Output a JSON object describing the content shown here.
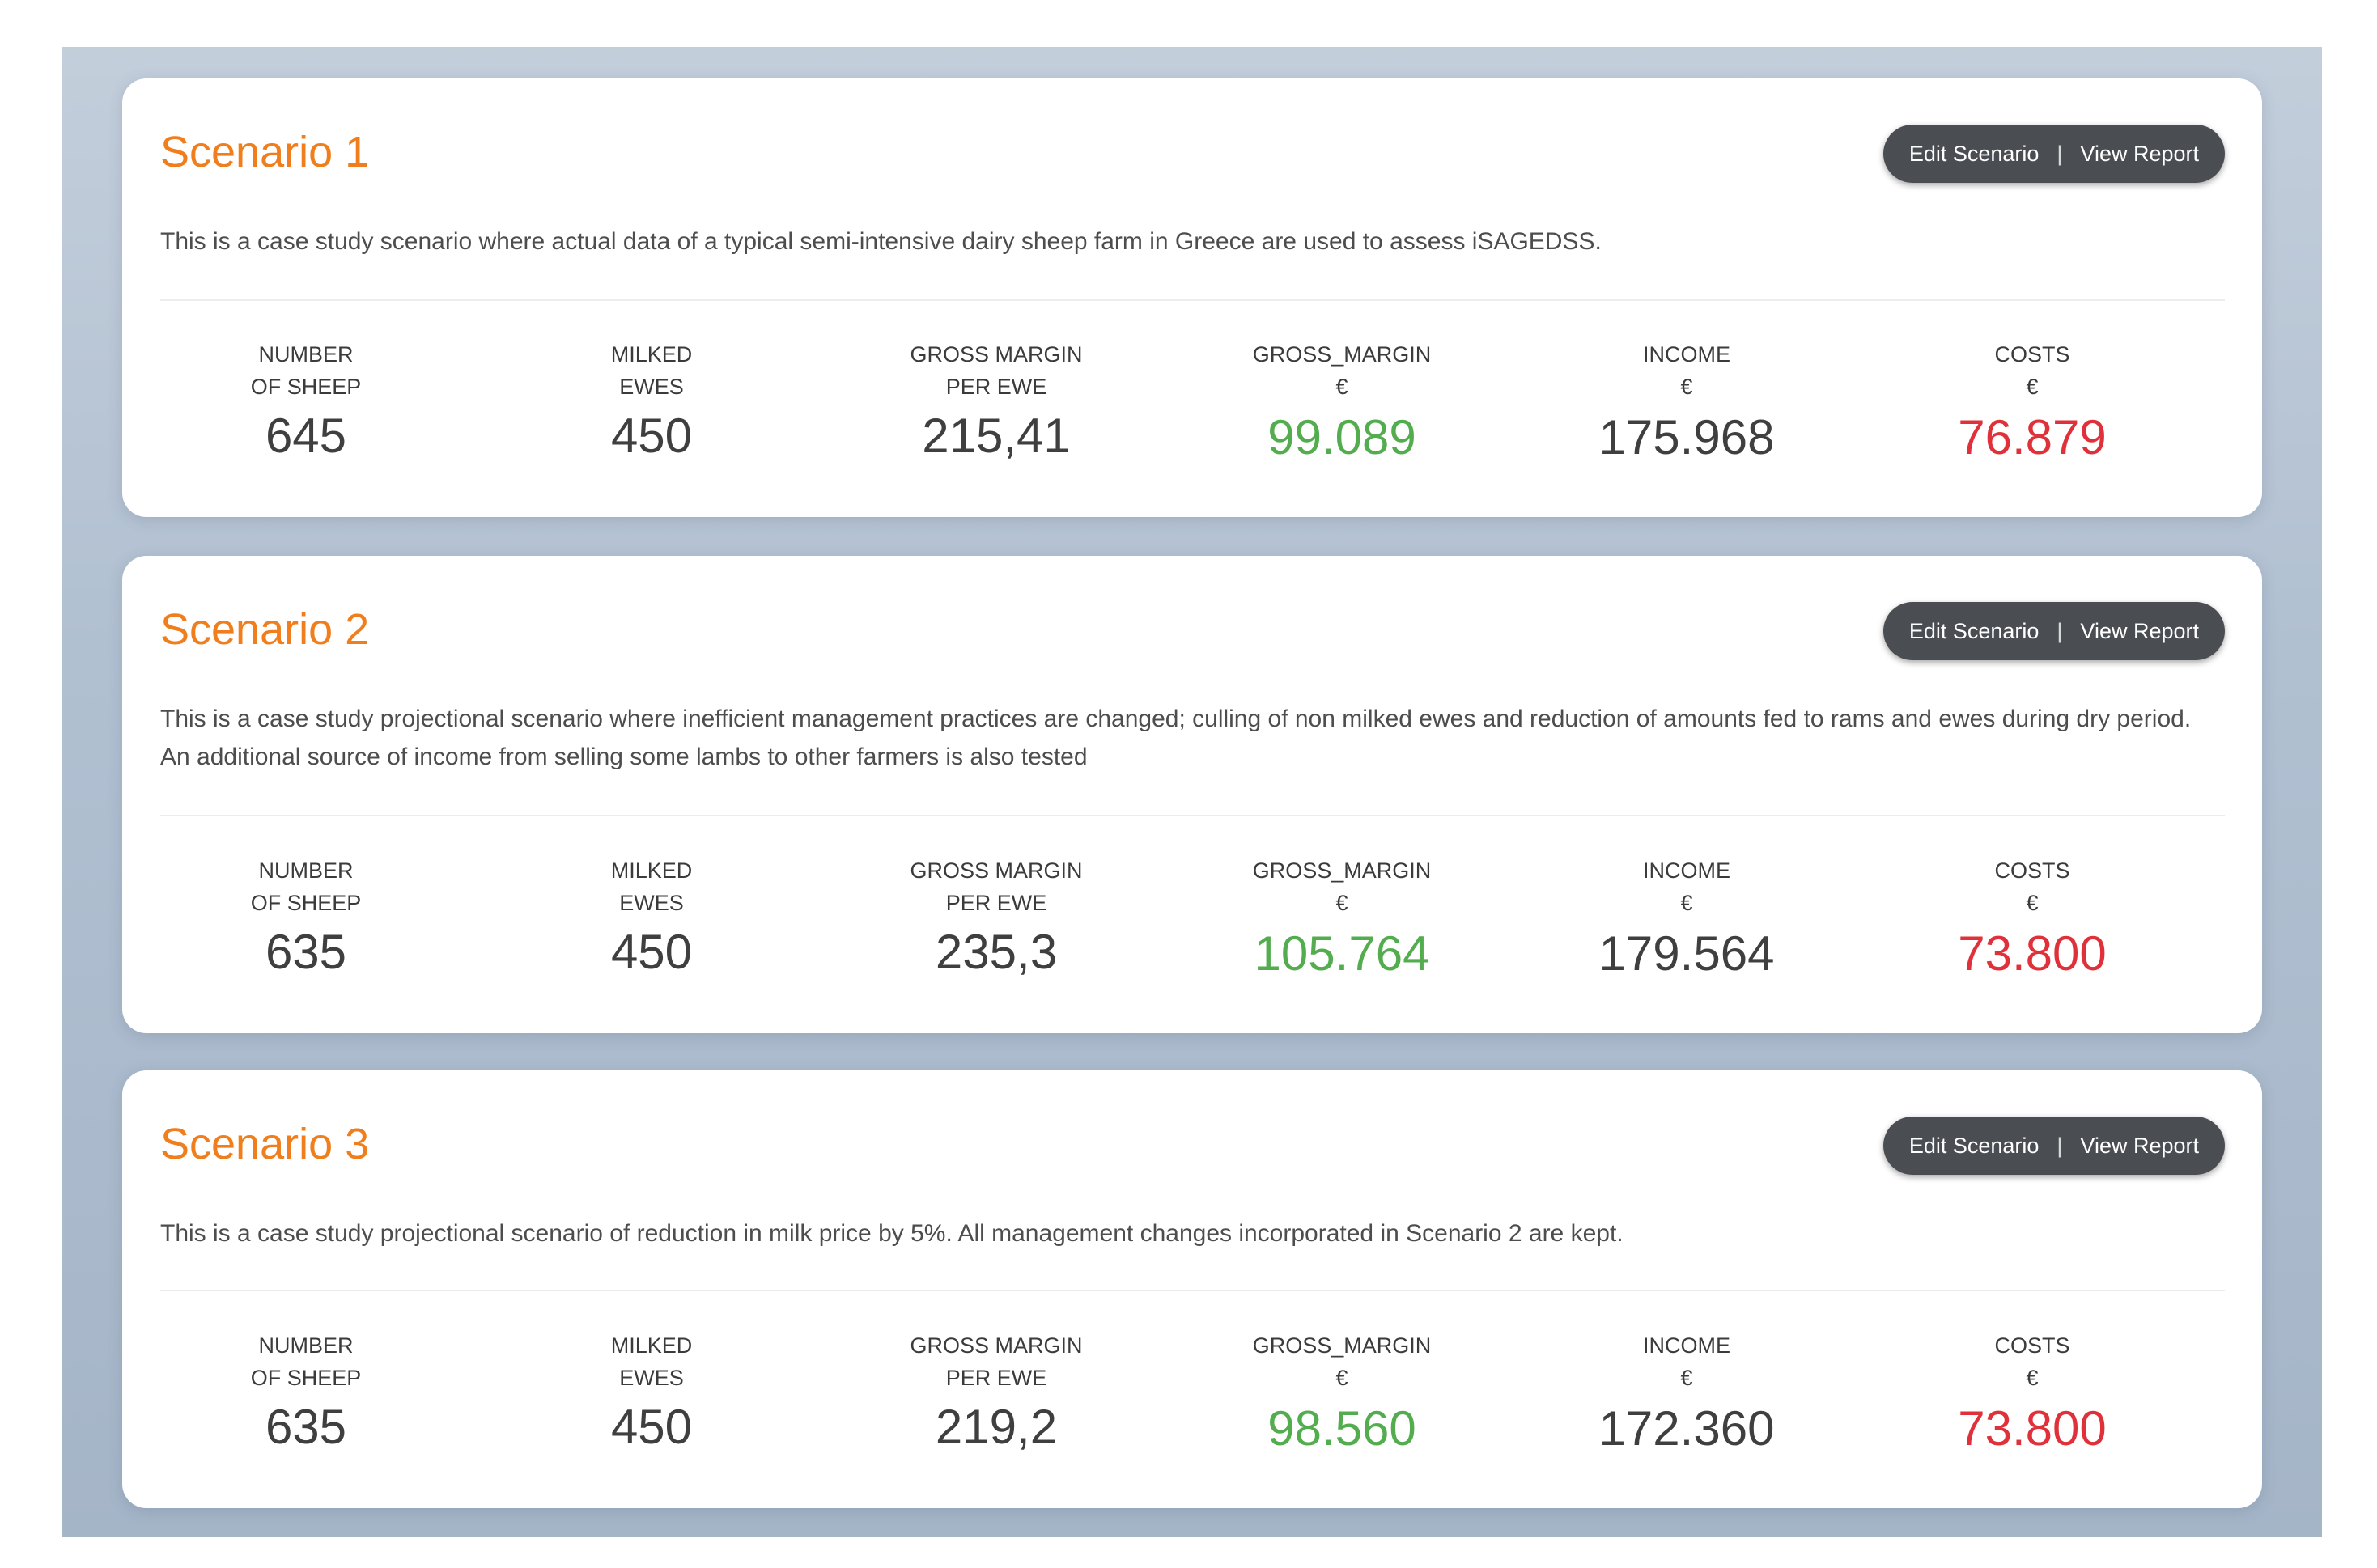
{
  "colors": {
    "title": "#f07e1c",
    "gross_margin_value": "#53ad4f",
    "costs_value": "#e0303a",
    "action_pill_bg": "#4a4d52"
  },
  "labels": {
    "number_of_sheep_1": "NUMBER",
    "number_of_sheep_2": "OF SHEEP",
    "milked_ewes_1": "MILKED",
    "milked_ewes_2": "EWES",
    "gm_per_ewe_1": "GROSS MARGIN",
    "gm_per_ewe_2": "PER EWE",
    "gross_margin": "GROSS_MARGIN",
    "income": "INCOME",
    "costs": "COSTS",
    "currency": "€",
    "edit_scenario": "Edit Scenario",
    "separator": "|",
    "view_report": "View Report"
  },
  "scenarios": [
    {
      "title": "Scenario 1",
      "description": "This is a case study scenario where actual data of a typical semi-intensive dairy sheep farm in Greece are used to assess iSAGEDSS.",
      "number_of_sheep": "645",
      "milked_ewes": "450",
      "gross_margin_per_ewe": "215,41",
      "gross_margin": "99.089",
      "income": "175.968",
      "costs": "76.879"
    },
    {
      "title": "Scenario 2",
      "description": "This is a case study projectional scenario where inefficient management practices are changed; culling of non milked ewes and reduction of amounts fed to rams and ewes during dry period. An additional source of income from selling some lambs to other farmers is also tested",
      "number_of_sheep": "635",
      "milked_ewes": "450",
      "gross_margin_per_ewe": "235,3",
      "gross_margin": "105.764",
      "income": "179.564",
      "costs": "73.800"
    },
    {
      "title": "Scenario 3",
      "description": "This is a case study projectional scenario of reduction in milk price by 5%. All management changes incorporated in Scenario 2 are kept.",
      "number_of_sheep": "635",
      "milked_ewes": "450",
      "gross_margin_per_ewe": "219,2",
      "gross_margin": "98.560",
      "income": "172.360",
      "costs": "73.800"
    }
  ]
}
